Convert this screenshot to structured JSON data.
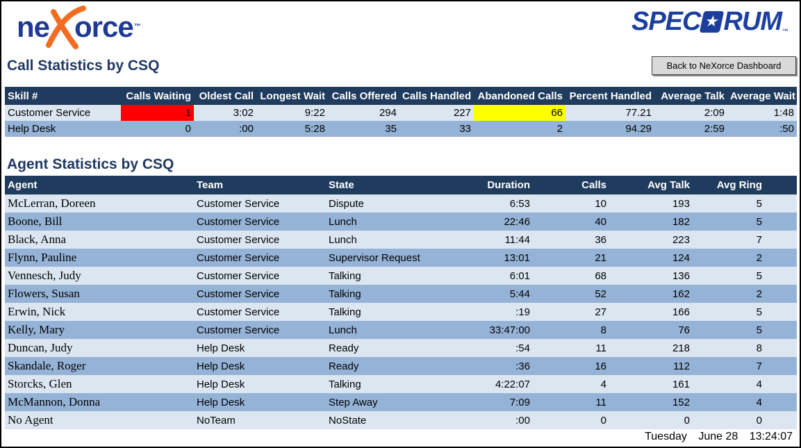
{
  "header": {
    "nexorce_logo": {
      "prefix": "ne",
      "suffix": "orce",
      "tm": "™"
    },
    "spectrum_logo": {
      "pre": "SPEC",
      "star": "★",
      "post": "RUM",
      "tm": "™"
    },
    "back_button": "Back to NeXorce Dashboard"
  },
  "call_stats": {
    "title": "Call Statistics by CSQ",
    "columns": [
      "Skill #",
      "Calls Waiting",
      "Oldest Call",
      "Longest Wait",
      "Calls Offered",
      "Calls Handled",
      "Abandoned Calls",
      "Percent Handled",
      "Average Talk",
      "Average Wait"
    ],
    "rows": [
      {
        "cells": [
          "Customer Service",
          "1",
          "3:02",
          "9:22",
          "294",
          "227",
          "66",
          "77.21",
          "2:09",
          "1:48"
        ],
        "highlights": {
          "1": "red",
          "6": "yellow"
        }
      },
      {
        "cells": [
          "Help Desk",
          "0",
          ":00",
          "5:28",
          "35",
          "33",
          "2",
          "94.29",
          "2:59",
          ":50"
        ]
      }
    ]
  },
  "agent_stats": {
    "title": "Agent Statistics by CSQ",
    "columns": [
      "Agent",
      "Team",
      "State",
      "Duration",
      "Calls",
      "Avg Talk",
      "Avg Ring"
    ],
    "rows": [
      {
        "cells": [
          "McLerran, Doreen",
          "Customer Service",
          "Dispute",
          "6:53",
          "10",
          "193",
          "5"
        ]
      },
      {
        "cells": [
          "Boone, Bill",
          "Customer Service",
          "Lunch",
          "22:46",
          "40",
          "182",
          "5"
        ]
      },
      {
        "cells": [
          "Black, Anna",
          "Customer Service",
          "Lunch",
          "11:44",
          "36",
          "223",
          "7"
        ]
      },
      {
        "cells": [
          "Flynn, Pauline",
          "Customer Service",
          "Supervisor Request",
          "13:01",
          "21",
          "124",
          "2"
        ]
      },
      {
        "cells": [
          "Vennesch, Judy",
          "Customer Service",
          "Talking",
          "6:01",
          "68",
          "136",
          "5"
        ]
      },
      {
        "cells": [
          "Flowers, Susan",
          "Customer Service",
          "Talking",
          "5:44",
          "52",
          "162",
          "2"
        ]
      },
      {
        "cells": [
          "Erwin, Nick",
          "Customer Service",
          "Talking",
          ":19",
          "27",
          "166",
          "5"
        ]
      },
      {
        "cells": [
          "Kelly, Mary",
          "Customer Service",
          "Lunch",
          "33:47:00",
          "8",
          "76",
          "5"
        ]
      },
      {
        "cells": [
          "Duncan, Judy",
          "Help Desk",
          "Ready",
          ":54",
          "11",
          "218",
          "8"
        ]
      },
      {
        "cells": [
          "Skandale, Roger",
          "Help Desk",
          "Ready",
          ":36",
          "16",
          "112",
          "7"
        ]
      },
      {
        "cells": [
          "Storcks, Glen",
          "Help Desk",
          "Talking",
          "4:22:07",
          "4",
          "161",
          "4"
        ]
      },
      {
        "cells": [
          "McMannon, Donna",
          "Help Desk",
          "Step Away",
          "7:09",
          "11",
          "152",
          "4"
        ]
      },
      {
        "cells": [
          "No Agent",
          "NoTeam",
          "NoState",
          ":00",
          "0",
          "0",
          "0"
        ]
      }
    ]
  },
  "footer": {
    "day": "Tuesday",
    "date": "June 28",
    "time": "13:24:07"
  },
  "colors": {
    "table_header_bg": "#1F3B5D",
    "row_light": "#DCE6F1",
    "row_medium": "#95B3D7",
    "alert_red": "#FF0000",
    "alert_yellow": "#FFFF00",
    "title_navy": "#1F3864",
    "nexorce_blue": "#1E3A96",
    "nexorce_orange": "#F26C21",
    "spectrum_blue": "#1C3F9E",
    "button_bg": "#D9D9D9"
  }
}
